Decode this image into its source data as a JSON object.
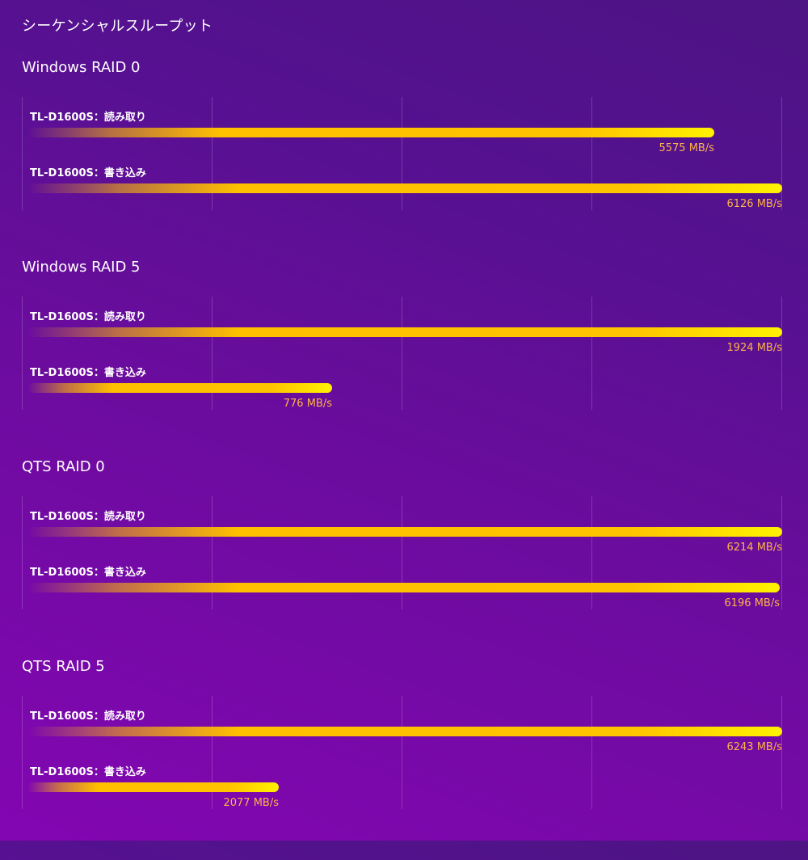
{
  "page_title": "シーケンシャルスループット",
  "chart_data": [
    {
      "type": "bar",
      "orientation": "horizontal",
      "title": "Windows RAID 0",
      "categories": [
        "TL-D1600S：読み取り",
        "TL-D1600S：書き込み"
      ],
      "values": [
        5575,
        6126
      ],
      "value_labels": [
        "5575 MB/s",
        "6126 MB/s"
      ],
      "unit": "MB/s",
      "xlim": [
        0,
        6126
      ],
      "grid": true
    },
    {
      "type": "bar",
      "orientation": "horizontal",
      "title": "Windows RAID 5",
      "categories": [
        "TL-D1600S：読み取り",
        "TL-D1600S：書き込み"
      ],
      "values": [
        1924,
        776
      ],
      "value_labels": [
        "1924 MB/s",
        "776 MB/s"
      ],
      "unit": "MB/s",
      "xlim": [
        0,
        1924
      ],
      "grid": true
    },
    {
      "type": "bar",
      "orientation": "horizontal",
      "title": "QTS RAID 0",
      "categories": [
        "TL-D1600S：読み取り",
        "TL-D1600S：書き込み"
      ],
      "values": [
        6214,
        6196
      ],
      "value_labels": [
        "6214 MB/s",
        "6196 MB/s"
      ],
      "unit": "MB/s",
      "xlim": [
        0,
        6214
      ],
      "grid": true
    },
    {
      "type": "bar",
      "orientation": "horizontal",
      "title": "QTS RAID 5",
      "categories": [
        "TL-D1600S：読み取り",
        "TL-D1600S：書き込み"
      ],
      "values": [
        6243,
        2077
      ],
      "value_labels": [
        "6243 MB/s",
        "2077 MB/s"
      ],
      "unit": "MB/s",
      "xlim": [
        0,
        6243
      ],
      "grid": true
    }
  ],
  "colors": {
    "bar_start": "#ffc000",
    "bar_end": "#fff200",
    "value_text": "#ffb347",
    "background_start": "#8306b2",
    "background_end": "#4d1484"
  }
}
